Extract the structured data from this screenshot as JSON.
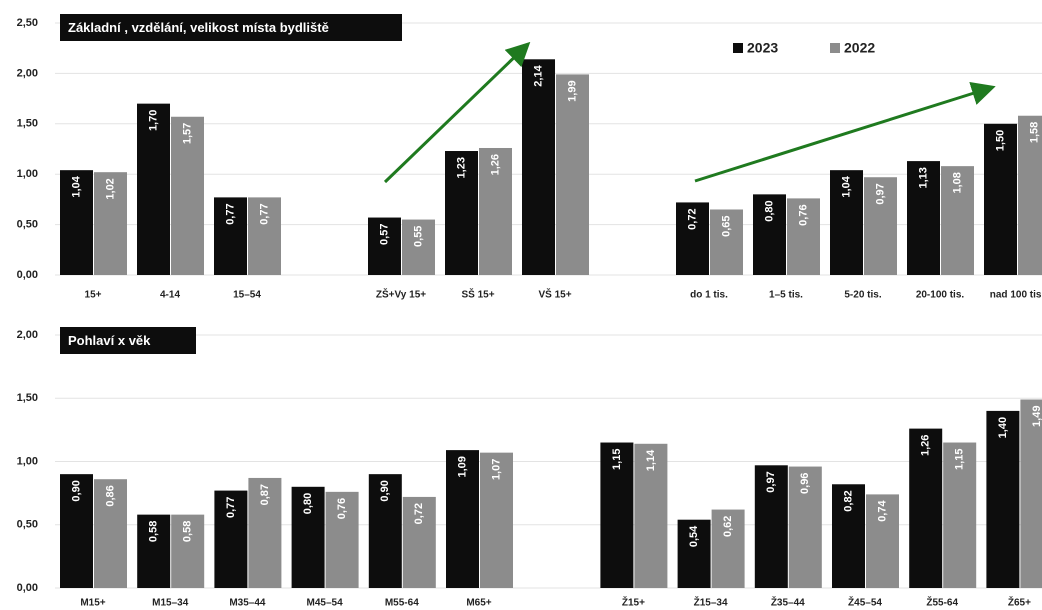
{
  "chart_data": [
    {
      "type": "bar",
      "title": "Základní , vzdělání, velikost místa bydliště",
      "categories": [
        "15+",
        "4-14",
        "15–54",
        null,
        "ZŠ+Vy 15+",
        "SŠ 15+",
        "VŠ 15+",
        null,
        "do 1 tis.",
        "1–5 tis.",
        "5-20 tis.",
        "20-100 tis.",
        "nad 100 tis."
      ],
      "series": [
        {
          "name": "2023",
          "color": "#0d0d0d",
          "values": [
            1.04,
            1.7,
            0.77,
            null,
            0.57,
            1.23,
            2.14,
            null,
            0.72,
            0.8,
            1.04,
            1.13,
            1.5
          ],
          "value_labels": [
            "1,04",
            "1,70",
            "0,77",
            null,
            "0,57",
            "1,23",
            "2,14",
            null,
            "0,72",
            "0,80",
            "1,04",
            "1,13",
            "1,50"
          ]
        },
        {
          "name": "2022",
          "color": "#8c8c8c",
          "values": [
            1.02,
            1.57,
            0.77,
            null,
            0.55,
            1.26,
            1.99,
            null,
            0.65,
            0.76,
            0.97,
            1.08,
            1.58
          ],
          "value_labels": [
            "1,02",
            "1,57",
            "0,77",
            null,
            "0,55",
            "1,26",
            "1,99",
            null,
            "0,65",
            "0,76",
            "0,97",
            "1,08",
            "1,58"
          ]
        }
      ],
      "ylim": [
        0,
        2.5
      ],
      "yticks": [
        {
          "value": 0,
          "label": "0,00"
        },
        {
          "value": 0.5,
          "label": "0,50"
        },
        {
          "value": 1,
          "label": "1,00"
        },
        {
          "value": 1.5,
          "label": "1,50"
        },
        {
          "value": 2,
          "label": "2,00"
        },
        {
          "value": 2.5,
          "label": "2,50"
        }
      ],
      "grid": true,
      "legend": "top-right"
    },
    {
      "type": "bar",
      "title": "Pohlaví x věk",
      "categories": [
        "M15+",
        "M15–34",
        "M35–44",
        "M45–54",
        "M55-64",
        "M65+",
        null,
        "Ž15+",
        "Ž15–34",
        "Ž35–44",
        "Ž45–54",
        "Ž55-64",
        "Ž65+"
      ],
      "series": [
        {
          "color": "#0d0d0d",
          "values": [
            0.9,
            0.58,
            0.77,
            0.8,
            0.9,
            1.09,
            null,
            1.15,
            0.54,
            0.97,
            0.82,
            1.26,
            1.4
          ],
          "value_labels": [
            "0,90",
            "0,58",
            "0,77",
            "0,80",
            "0,90",
            "1,09",
            null,
            "1,15",
            "0,54",
            "0,97",
            "0,82",
            "1,26",
            "1,40"
          ]
        },
        {
          "color": "#8c8c8c",
          "values": [
            0.86,
            0.58,
            0.87,
            0.76,
            0.72,
            1.07,
            null,
            1.14,
            0.62,
            0.96,
            0.74,
            1.15,
            1.49
          ],
          "value_labels": [
            "0,86",
            "0,58",
            "0,87",
            "0,76",
            "0,72",
            "1,07",
            null,
            "1,14",
            "0,62",
            "0,96",
            "0,74",
            "1,15",
            "1,49"
          ]
        }
      ],
      "ylim": [
        0,
        2
      ],
      "yticks": [
        {
          "value": 0,
          "label": "0,00"
        },
        {
          "value": 0.5,
          "label": "0,50"
        },
        {
          "value": 1,
          "label": "1,00"
        },
        {
          "value": 1.5,
          "label": "1,50"
        },
        {
          "value": 2,
          "label": "2,00"
        }
      ],
      "grid": true
    }
  ]
}
